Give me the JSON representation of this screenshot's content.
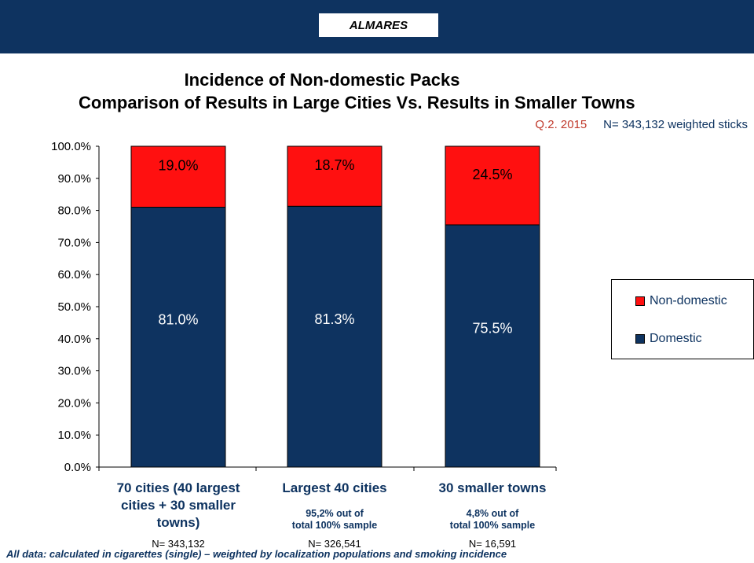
{
  "header": {
    "brand": "ALMARES"
  },
  "title_line1": "Incidence of Non-domestic Packs",
  "title_line2": "Comparison of Results in Large Cities Vs. Results in Smaller Towns",
  "subtitle_period": "Q.2. 2015",
  "subtitle_sample": "N= 343,132   weighted sticks",
  "colors": {
    "banner": "#0e3360",
    "domestic": "#0e3360",
    "non_domestic": "#ff1010",
    "text_dark_blue": "#0e3360"
  },
  "chart_data": {
    "type": "bar",
    "stacked": true,
    "categories": [
      "70 cities (40 largest cities + 30 smaller towns)",
      "Largest 40 cities",
      "30 smaller towns"
    ],
    "category_lines": [
      [
        "70 cities (40 largest",
        "cities + 30 smaller",
        "towns)"
      ],
      [
        "Largest 40 cities"
      ],
      [
        "30 smaller towns"
      ]
    ],
    "category_notes": [
      [],
      [
        "95,2% out of",
        "total 100% sample"
      ],
      [
        "4,8% out of",
        "total 100% sample"
      ]
    ],
    "sample_sizes": [
      "N= 343,132",
      "N= 326,541",
      "N= 16,591"
    ],
    "series": [
      {
        "name": "Domestic",
        "values": [
          81.0,
          81.3,
          75.5
        ],
        "labels": [
          "81.0%",
          "81.3%",
          "75.5%"
        ]
      },
      {
        "name": "Non-domestic",
        "values": [
          19.0,
          18.7,
          24.5
        ],
        "labels": [
          "19.0%",
          "18.7%",
          "24.5%"
        ]
      }
    ],
    "ylim": [
      0,
      100
    ],
    "yticks": [
      "0.0%",
      "10.0%",
      "20.0%",
      "30.0%",
      "40.0%",
      "50.0%",
      "60.0%",
      "70.0%",
      "80.0%",
      "90.0%",
      "100.0%"
    ],
    "legend_position": "right",
    "grid": false
  },
  "footnote": "All data: calculated in cigarettes (single) – weighted by localization populations and  smoking incidence"
}
